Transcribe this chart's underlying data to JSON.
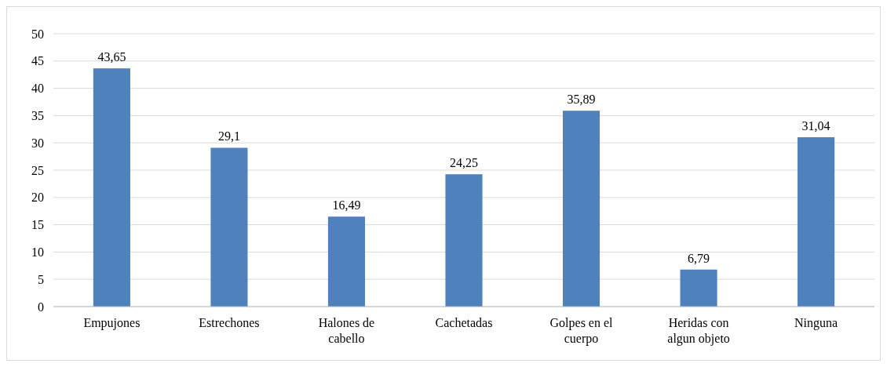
{
  "chart_data": {
    "type": "bar",
    "categories": [
      "Empujones",
      "Estrechones",
      "Halones de cabello",
      "Cachetadas",
      "Golpes en el cuerpo",
      "Heridas con algun objeto",
      "Ninguna"
    ],
    "values": [
      43.65,
      29.1,
      16.49,
      24.25,
      35.89,
      6.79,
      31.04
    ],
    "value_labels": [
      "43,65",
      "29,1",
      "16,49",
      "24,25",
      "35,89",
      "6,79",
      "31,04"
    ],
    "color": "#4f81bd",
    "ylim": [
      0,
      50
    ],
    "yticks": [
      0,
      5,
      10,
      15,
      20,
      25,
      30,
      35,
      40,
      45,
      50
    ],
    "grid": "y"
  }
}
